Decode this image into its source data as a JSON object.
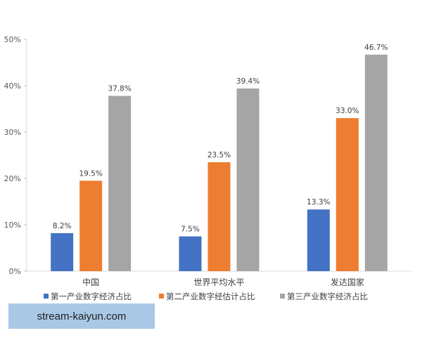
{
  "chart_data": {
    "type": "bar",
    "title": "",
    "xlabel": "",
    "ylabel": "",
    "ylim": [
      0,
      50
    ],
    "yticks": [
      "0%",
      "10%",
      "20%",
      "30%",
      "40%",
      "50%"
    ],
    "categories": [
      "中国",
      "世界平均水平",
      "发达国家"
    ],
    "series": [
      {
        "name": "第一产业数字经济占比",
        "values": [
          8.2,
          7.5,
          13.3
        ],
        "labels": [
          "8.2%",
          "7.5%",
          "13.3%"
        ],
        "color": "#4472c4"
      },
      {
        "name": "第二产业数字经估计占比",
        "values": [
          19.5,
          23.5,
          33.0
        ],
        "labels": [
          "19.5%",
          "23.5%",
          "33.0%"
        ],
        "color": "#ed7d31"
      },
      {
        "name": "第三产业数字经济占比",
        "values": [
          37.8,
          39.4,
          46.7
        ],
        "labels": [
          "37.8%",
          "39.4%",
          "46.7%"
        ],
        "color": "#a5a5a5"
      }
    ],
    "grid": false,
    "legend_position": "bottom"
  },
  "watermark": {
    "text": "stream-kaiyun.com"
  }
}
